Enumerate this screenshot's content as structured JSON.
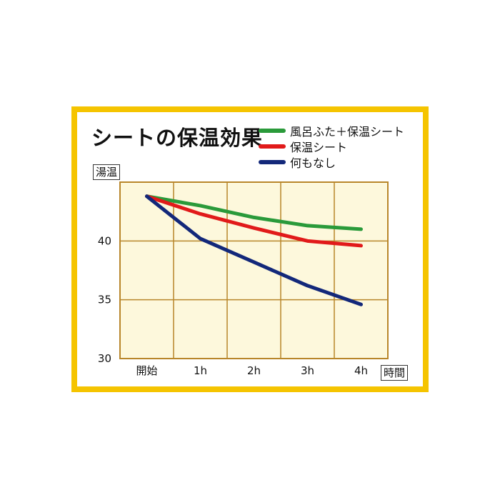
{
  "chart_data": {
    "type": "line",
    "title": "シートの保温効果",
    "ylabel": "湯温",
    "xlabel": "時間",
    "categories": [
      "開始",
      "1h",
      "2h",
      "3h",
      "4h"
    ],
    "ylim": [
      30,
      45
    ],
    "yticks": [
      30,
      35,
      40
    ],
    "grid": true,
    "legend_position": "top-right",
    "series": [
      {
        "name": "風呂ふた＋保温シート",
        "color": "#2a9a3a",
        "values": [
          43.8,
          43.0,
          42.0,
          41.3,
          41.0
        ]
      },
      {
        "name": "保温シート",
        "color": "#e11a1a",
        "values": [
          43.8,
          42.3,
          41.1,
          40.0,
          39.6
        ]
      },
      {
        "name": "何もなし",
        "color": "#13287a",
        "values": [
          43.8,
          40.2,
          38.2,
          36.2,
          34.6
        ]
      }
    ],
    "colors": {
      "frame": "#f5c400",
      "plot_bg": "#fdf8dc",
      "grid": "#b8862a"
    }
  }
}
